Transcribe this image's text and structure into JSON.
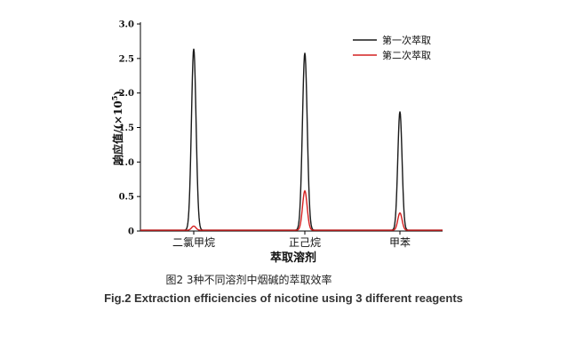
{
  "chart_data": {
    "type": "line",
    "ylabel": "响应值/(×10",
    "ylabel_sup": "5",
    "ylabel_close": ")",
    "xlabel": "萃取溶剂",
    "categories": [
      "二氯甲烷",
      "正己烷",
      "甲苯"
    ],
    "ylim": [
      0,
      3.0
    ],
    "yticks": [
      0,
      0.5,
      1.0,
      1.5,
      2.0,
      2.5,
      3.0
    ],
    "ytick_labels": [
      "0",
      "0.5",
      "1.0",
      "1.5",
      "2.0",
      "2.5",
      "3.0"
    ],
    "grid": false,
    "legend_placement": "top-right",
    "series": [
      {
        "name": "第一次萃取",
        "color": "#1a1a1a",
        "peaks": [
          2.63,
          2.57,
          1.72
        ]
      },
      {
        "name": "第二次萃取",
        "color": "#d42020",
        "peaks": [
          0.06,
          0.57,
          0.25
        ]
      }
    ]
  },
  "captions": {
    "cn": "图2 3种不同溶剂中烟碱的萃取效率",
    "en": "Fig.2 Extraction efficiencies of nicotine using 3 different reagents"
  }
}
